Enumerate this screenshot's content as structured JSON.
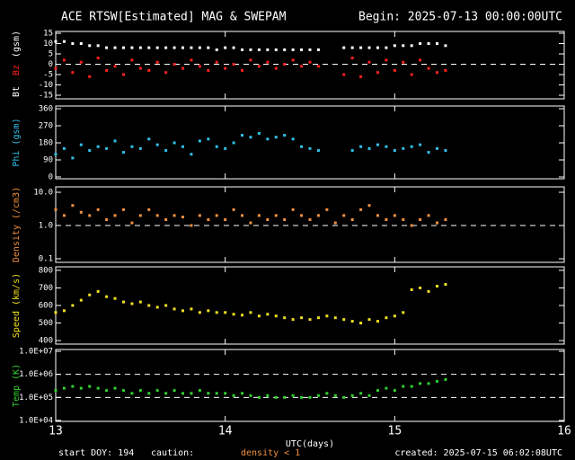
{
  "header": {
    "title": "ACE RTSW[Estimated] MAG & SWEPAM",
    "begin": "Begin: 2025-07-13 00:00:00UTC"
  },
  "footer": {
    "start": "start DOY: 194",
    "caution": "caution:",
    "warning": "density < 1",
    "created": "created: 2025-07-15 06:02:08UTC"
  },
  "x": [
    13.0,
    13.05,
    13.1,
    13.15,
    13.2,
    13.25,
    13.3,
    13.35,
    13.4,
    13.45,
    13.5,
    13.55,
    13.6,
    13.65,
    13.7,
    13.75,
    13.8,
    13.85,
    13.9,
    13.95,
    14.0,
    14.05,
    14.1,
    14.15,
    14.2,
    14.25,
    14.3,
    14.35,
    14.4,
    14.45,
    14.5,
    14.55,
    14.6,
    14.65,
    14.7,
    14.75,
    14.8,
    14.85,
    14.9,
    14.95,
    15.0,
    15.05,
    15.1,
    15.15,
    15.2,
    15.25,
    15.3
  ],
  "xlim": [
    13,
    16
  ],
  "xticks": [
    13,
    14,
    15,
    16
  ],
  "xlabel": "UTC(days)",
  "chart_data": [
    {
      "type": "scatter",
      "ylabel": "(gsm)",
      "ylim": [
        -15,
        15
      ],
      "yticks": [
        -15,
        -10,
        -5,
        0,
        5,
        10,
        15
      ],
      "reference_lines": [
        0
      ],
      "series": [
        {
          "name": "Bt",
          "color": "#ffffff",
          "values": [
            11,
            11,
            10,
            10,
            9,
            9,
            8,
            8,
            8,
            8,
            8,
            8,
            8,
            8,
            8,
            8,
            8,
            8,
            8,
            7,
            8,
            8,
            7,
            7,
            7,
            7,
            7,
            7,
            7,
            7,
            7,
            7,
            null,
            null,
            8,
            8,
            8,
            8,
            8,
            8,
            9,
            9,
            9,
            10,
            10,
            10,
            9
          ]
        },
        {
          "name": "Bz",
          "color": "#ff2020",
          "values": [
            -2,
            2,
            -4,
            1,
            -6,
            3,
            -3,
            -1,
            -5,
            2,
            -2,
            -3,
            1,
            -4,
            0,
            -2,
            2,
            -1,
            -3,
            1,
            -2,
            0,
            -3,
            2,
            -1,
            1,
            -2,
            0,
            2,
            -1,
            1,
            -1,
            null,
            null,
            -5,
            3,
            -6,
            1,
            -4,
            2,
            -3,
            1,
            -5,
            2,
            -2,
            -4,
            -3
          ]
        }
      ]
    },
    {
      "type": "scatter",
      "ylabel": "Phi (gsm)",
      "ylim": [
        0,
        360
      ],
      "yticks": [
        0,
        90,
        180,
        270,
        360
      ],
      "series": [
        {
          "color": "#30c0e8",
          "values": [
            120,
            150,
            100,
            170,
            140,
            160,
            150,
            190,
            130,
            160,
            150,
            200,
            170,
            140,
            180,
            160,
            120,
            190,
            200,
            160,
            150,
            180,
            220,
            210,
            230,
            200,
            210,
            220,
            200,
            160,
            150,
            140,
            null,
            null,
            null,
            140,
            160,
            150,
            170,
            160,
            140,
            150,
            160,
            170,
            130,
            150,
            140
          ]
        }
      ]
    },
    {
      "type": "scatter",
      "ylabel": "Density (/cm3)",
      "log": true,
      "ylim": [
        0.1,
        10
      ],
      "yticks": [
        0.1,
        {
          "value": 1,
          "label": "1.0"
        },
        {
          "value": 10,
          "label": "10.0"
        }
      ],
      "reference_lines": [
        1
      ],
      "series": [
        {
          "color": "#f09040",
          "values": [
            3,
            2,
            4,
            2.5,
            2,
            3,
            1.5,
            2,
            3,
            1.2,
            2,
            3,
            2,
            1.5,
            2,
            1.8,
            1,
            2,
            1.5,
            2,
            1.5,
            3,
            2,
            1.2,
            2,
            1.5,
            2,
            1.5,
            3,
            2,
            1.5,
            2,
            3,
            1.2,
            2,
            1.5,
            3,
            4,
            2,
            1.5,
            2,
            1.5,
            1,
            1.5,
            2,
            1.2,
            1.5
          ]
        }
      ]
    },
    {
      "type": "scatter",
      "ylabel": "Speed (km/s)",
      "ylim": [
        380,
        820
      ],
      "yticks": [
        400,
        500,
        600,
        700,
        800
      ],
      "series": [
        {
          "color": "#f0e020",
          "values": [
            560,
            570,
            600,
            630,
            660,
            680,
            650,
            640,
            620,
            610,
            620,
            600,
            590,
            600,
            580,
            570,
            580,
            560,
            570,
            560,
            560,
            550,
            545,
            560,
            540,
            550,
            540,
            530,
            520,
            530,
            520,
            530,
            540,
            530,
            520,
            510,
            500,
            520,
            510,
            530,
            540,
            560,
            690,
            700,
            680,
            710,
            720
          ]
        }
      ]
    },
    {
      "type": "scatter",
      "ylabel": "Temp (K)",
      "log": true,
      "ylim": [
        10000,
        10000000
      ],
      "yticks": [
        {
          "value": 10000,
          "label": "1.0E+04"
        },
        {
          "value": 100000,
          "label": "1.0E+05"
        },
        {
          "value": 1000000,
          "label": "1.0E+06"
        },
        {
          "value": 10000000,
          "label": "1.0E+07"
        }
      ],
      "reference_lines": [
        100000,
        1000000
      ],
      "series": [
        {
          "color": "#30d030",
          "values": [
            200000,
            250000,
            300000,
            250000,
            300000,
            250000,
            200000,
            250000,
            200000,
            150000,
            200000,
            150000,
            200000,
            150000,
            200000,
            150000,
            150000,
            200000,
            150000,
            150000,
            150000,
            120000,
            150000,
            120000,
            100000,
            120000,
            100000,
            100000,
            120000,
            100000,
            100000,
            120000,
            150000,
            120000,
            100000,
            120000,
            150000,
            120000,
            200000,
            250000,
            200000,
            300000,
            300000,
            400000,
            400000,
            500000,
            600000
          ]
        }
      ]
    }
  ]
}
